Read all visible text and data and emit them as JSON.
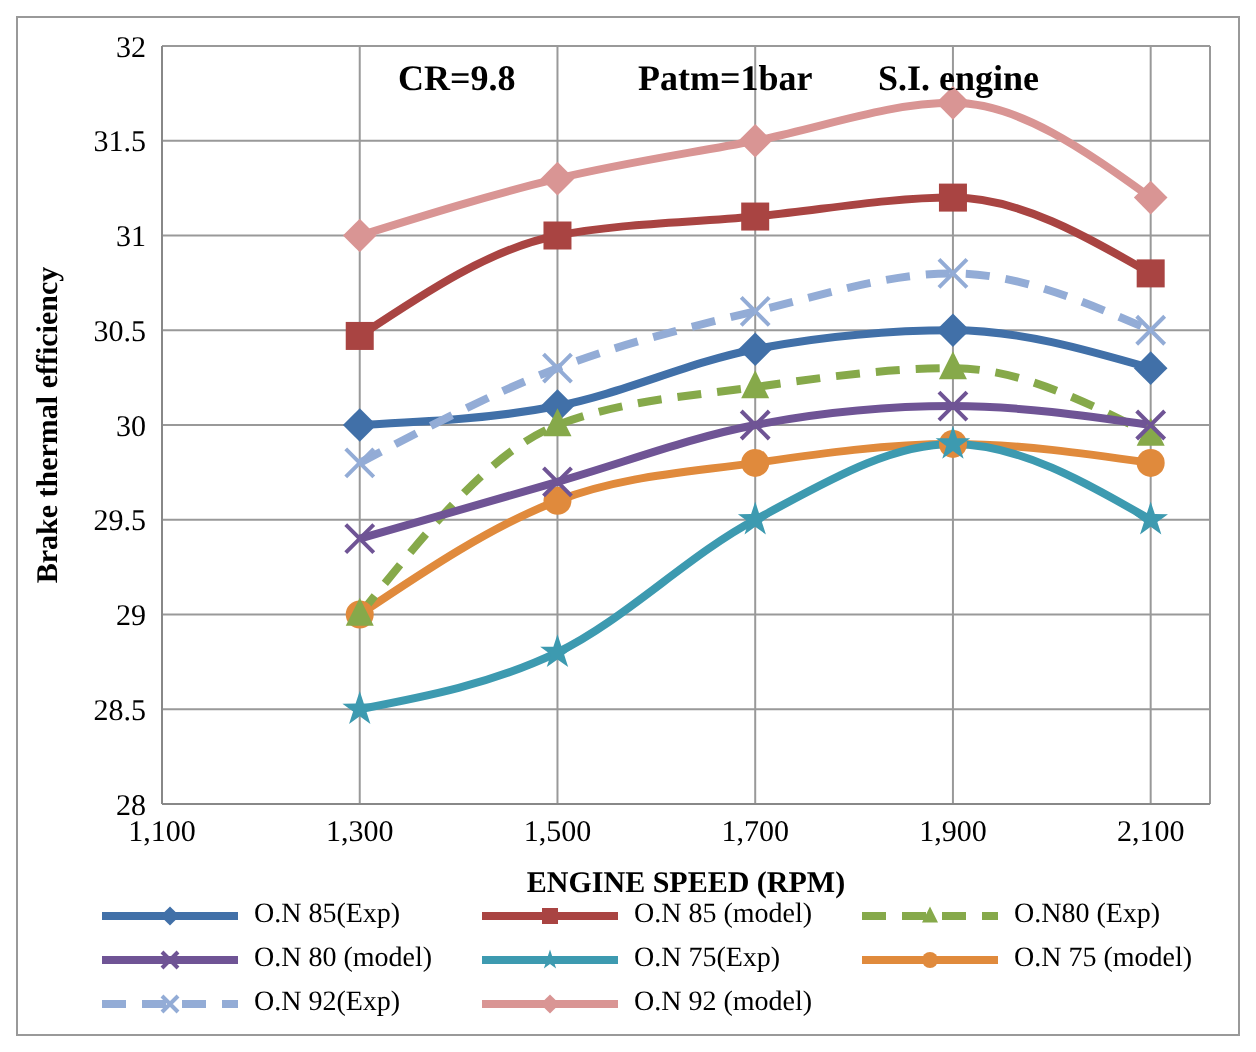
{
  "chart_data": {
    "type": "line",
    "xlabel": "ENGINE SPEED (RPM)",
    "ylabel": "Brake thermal efficiency",
    "annotations": [
      "CR=9.8",
      "Patm=1bar",
      "S.I. engine"
    ],
    "x": [
      1300,
      1500,
      1700,
      1900,
      2100
    ],
    "xlim": [
      1100,
      2160
    ],
    "xticks": [
      {
        "value": 1100,
        "label": "1,100"
      },
      {
        "value": 1300,
        "label": "1,300"
      },
      {
        "value": 1500,
        "label": "1,500"
      },
      {
        "value": 1700,
        "label": "1,700"
      },
      {
        "value": 1900,
        "label": "1,900"
      },
      {
        "value": 2100,
        "label": "2,100"
      }
    ],
    "ylim": [
      28,
      32
    ],
    "yticks": [
      28,
      28.5,
      29,
      29.5,
      30,
      30.5,
      31,
      31.5,
      32
    ],
    "grid": true,
    "legend": "bottom",
    "series": [
      {
        "name": "O.N 85(Exp)",
        "color": "#4170a8",
        "marker": "diamond",
        "line_style": "solid",
        "values": [
          30,
          30.1,
          30.4,
          30.5,
          30.3
        ]
      },
      {
        "name": "O.N 85 (model)",
        "color": "#a94442",
        "marker": "square",
        "line_style": "solid",
        "values": [
          30.47,
          31,
          31.1,
          31.2,
          30.8
        ]
      },
      {
        "name": "O.N80 (Exp)",
        "color": "#86a94a",
        "marker": "triangle",
        "line_style": "dashed",
        "values": [
          29,
          30,
          30.2,
          30.3,
          29.95
        ]
      },
      {
        "name": "O.N 80 (model)",
        "color": "#6f5495",
        "marker": "cross",
        "line_style": "solid",
        "values": [
          29.4,
          29.7,
          30,
          30.1,
          30
        ]
      },
      {
        "name": "O.N 75(Exp)",
        "color": "#3d9ab0",
        "marker": "star",
        "line_style": "solid",
        "values": [
          28.5,
          28.8,
          29.5,
          29.9,
          29.5
        ]
      },
      {
        "name": "O.N 75 (model)",
        "color": "#e08a3c",
        "marker": "circle",
        "line_style": "solid",
        "values": [
          29,
          29.6,
          29.8,
          29.9,
          29.8
        ]
      },
      {
        "name": "O.N 92(Exp)",
        "color": "#93acd6",
        "marker": "cross",
        "line_style": "dashed",
        "values": [
          29.8,
          30.3,
          30.6,
          30.8,
          30.5
        ]
      },
      {
        "name": "O.N 92 (model)",
        "color": "#d99594",
        "marker": "diamond",
        "line_style": "solid",
        "values": [
          31,
          31.3,
          31.5,
          31.7,
          31.2
        ]
      }
    ]
  }
}
